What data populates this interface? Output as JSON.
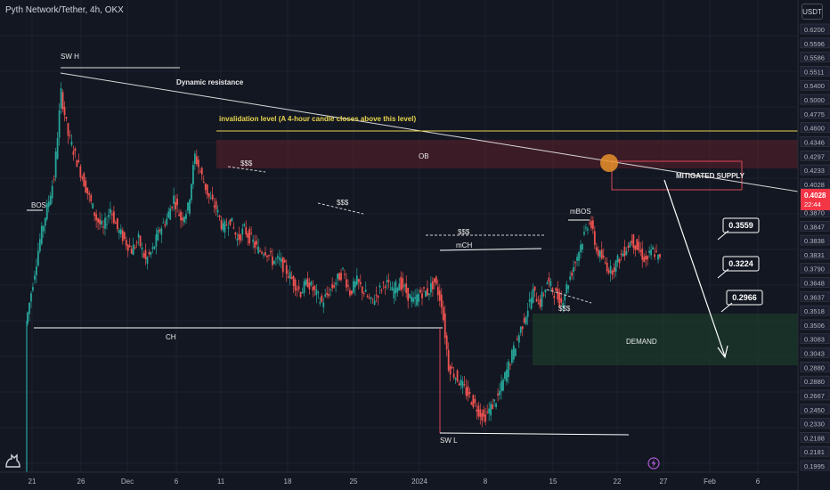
{
  "header": {
    "symbol_title": "Pyth Network/Tether, 4h, OKX",
    "currency": "USDT"
  },
  "icons": {
    "logo": "tradingview-logo-icon",
    "event": "lightning-event-icon"
  },
  "chart_data": {
    "type": "candlestick",
    "title": "Pyth Network/Tether, 4h, OKX",
    "ylim": [
      0.19,
      0.64
    ],
    "x_ticks": [
      "21",
      "26",
      "Dec",
      "6",
      "11",
      "18",
      "25",
      "2024",
      "8",
      "15",
      "22",
      "27",
      "Feb",
      "6"
    ],
    "price_axis_labels": [
      "0.6200",
      "0.5596",
      "0.5586",
      "0.5511",
      "0.5400",
      "0.5000",
      "0.4775",
      "0.4600",
      "0.4346",
      "0.4297",
      "0.4233",
      "0.4028",
      "0.3973",
      "0.3870",
      "0.3847",
      "0.3838",
      "0.3831",
      "0.3790",
      "0.3648",
      "0.3637",
      "0.3518",
      "0.3506",
      "0.3083",
      "0.3043",
      "0.2880",
      "0.2880",
      "0.2667",
      "0.2450",
      "0.2330",
      "0.2188",
      "0.2181",
      "0.1995"
    ],
    "last_price": "0.4028",
    "countdown": "22:44",
    "highlighted_level": "0.4775",
    "candles_close_path": [
      0.34,
      0.38,
      0.42,
      0.45,
      0.48,
      0.56,
      0.52,
      0.5,
      0.48,
      0.46,
      0.44,
      0.43,
      0.45,
      0.43,
      0.42,
      0.41,
      0.42,
      0.4,
      0.41,
      0.43,
      0.44,
      0.46,
      0.44,
      0.45,
      0.5,
      0.48,
      0.46,
      0.45,
      0.43,
      0.44,
      0.42,
      0.43,
      0.42,
      0.41,
      0.41,
      0.4,
      0.4,
      0.39,
      0.38,
      0.37,
      0.38,
      0.37,
      0.36,
      0.37,
      0.38,
      0.39,
      0.37,
      0.38,
      0.37,
      0.36,
      0.37,
      0.38,
      0.37,
      0.38,
      0.37,
      0.36,
      0.37,
      0.37,
      0.38,
      0.36,
      0.3,
      0.29,
      0.28,
      0.27,
      0.26,
      0.25,
      0.26,
      0.27,
      0.29,
      0.31,
      0.33,
      0.35,
      0.37,
      0.36,
      0.38,
      0.37,
      0.36,
      0.38,
      0.4,
      0.42,
      0.44,
      0.41,
      0.4,
      0.39,
      0.4,
      0.41,
      0.42,
      0.41,
      0.4,
      0.41,
      0.4
    ],
    "annotations": [
      {
        "label": "SW H"
      },
      {
        "label": "Dynamic resistance"
      },
      {
        "label": "invalidation level (A 4-hour candle closes above this level)"
      },
      {
        "label": "OB"
      },
      {
        "label": "$$$"
      },
      {
        "label": "$$$"
      },
      {
        "label": "$$$"
      },
      {
        "label": "$$$"
      },
      {
        "label": "BOS"
      },
      {
        "label": "mCH"
      },
      {
        "label": "mBOS"
      },
      {
        "label": "MITIGATED SUPPLY"
      },
      {
        "label": "CH"
      },
      {
        "label": "SW L"
      },
      {
        "label": "DEMAND"
      }
    ],
    "targets": [
      "0.3559",
      "0.3224",
      "0.2966"
    ],
    "zones": [
      {
        "name": "OB",
        "top": 0.46,
        "bottom": 0.4297,
        "color": "#f2364522"
      },
      {
        "name": "DEMAND",
        "top": 0.3518,
        "bottom": 0.288,
        "color": "#1b5e2044"
      }
    ],
    "colors": {
      "up": "#26a69a",
      "down": "#ef5350",
      "background": "#131722",
      "invalidation": "#e8d44d",
      "last_price": "#f23645"
    }
  }
}
